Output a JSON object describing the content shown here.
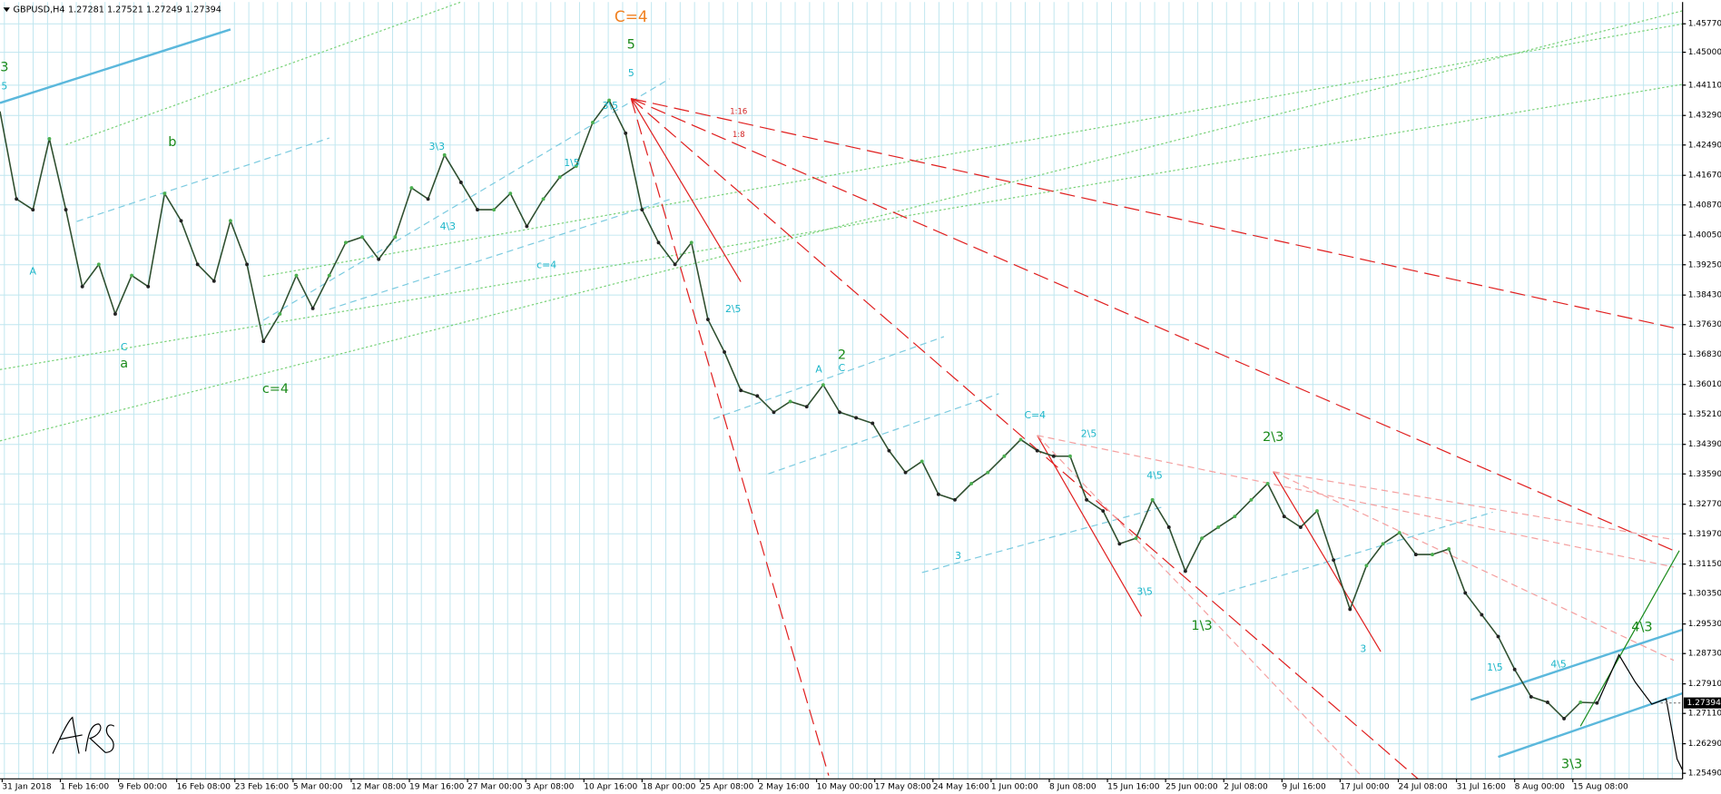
{
  "header": {
    "symbol": "GBPUSD,H4",
    "quote": "1.27281 1.27521 1.27249 1.27394"
  },
  "chart_data": {
    "type": "line",
    "color": "#2f4f2f",
    "grid": true,
    "x_labels": [
      "31 Jan 2018",
      "1 Feb 16:00",
      "9 Feb 00:00",
      "16 Feb 08:00",
      "23 Feb 16:00",
      "5 Mar 00:00",
      "12 Mar 08:00",
      "19 Mar 16:00",
      "27 Mar 00:00",
      "3 Apr 08:00",
      "10 Apr 16:00",
      "18 Apr 00:00",
      "25 Apr 08:00",
      "2 May 16:00",
      "10 May 00:00",
      "17 May 08:00",
      "24 May 16:00",
      "1 Jun 00:00",
      "8 Jun 08:00",
      "15 Jun 16:00",
      "25 Jun 00:00",
      "2 Jul 08:00",
      "9 Jul 16:00",
      "17 Jul 00:00",
      "24 Jul 08:00",
      "31 Jul 16:00",
      "8 Aug 00:00",
      "15 Aug 08:00"
    ],
    "values": [
      1.434,
      1.4103,
      1.4074,
      1.4266,
      1.4074,
      1.3866,
      1.3926,
      1.3792,
      1.3896,
      1.3866,
      1.4118,
      1.4044,
      1.3926,
      1.3881,
      1.4044,
      1.3926,
      1.3718,
      1.3792,
      1.3896,
      1.3807,
      1.3896,
      1.3985,
      1.4,
      1.394,
      1.4,
      1.4133,
      1.4103,
      1.4222,
      1.4148,
      1.4074,
      1.4074,
      1.4118,
      1.4029,
      1.4103,
      1.4162,
      1.4192,
      1.431,
      1.437,
      1.4281,
      1.4074,
      1.3985,
      1.3926,
      1.3985,
      1.3777,
      1.3689,
      1.3585,
      1.357,
      1.3526,
      1.3555,
      1.3541,
      1.36,
      1.3526,
      1.3511,
      1.3496,
      1.3422,
      1.3363,
      1.3393,
      1.3304,
      1.3289,
      1.3333,
      1.3363,
      1.3407,
      1.3452,
      1.3422,
      1.3407,
      1.3407,
      1.3289,
      1.3259,
      1.317,
      1.3185,
      1.3289,
      1.3215,
      1.3096,
      1.3185,
      1.3215,
      1.3244,
      1.3289,
      1.3333,
      1.3244,
      1.3215,
      1.3259,
      1.3126,
      1.2993,
      1.3111,
      1.317,
      1.32,
      1.3141,
      1.3141,
      1.3156,
      1.3037,
      1.2978,
      1.2919,
      1.283,
      1.2756,
      1.2741,
      1.2697,
      1.2741,
      1.27394
    ],
    "ylim": [
      1.2534,
      1.4636
    ],
    "yticks": [
      {
        "value": 1.4577,
        "label": "1.45770"
      },
      {
        "value": 1.45,
        "label": "1.45000"
      },
      {
        "value": 1.4411,
        "label": "1.44110"
      },
      {
        "value": 1.4329,
        "label": "1.43290"
      },
      {
        "value": 1.4249,
        "label": "1.42490"
      },
      {
        "value": 1.4167,
        "label": "1.41670"
      },
      {
        "value": 1.4087,
        "label": "1.40870"
      },
      {
        "value": 1.4005,
        "label": "1.40050"
      },
      {
        "value": 1.3925,
        "label": "1.39250"
      },
      {
        "value": 1.3843,
        "label": "1.38430"
      },
      {
        "value": 1.3763,
        "label": "1.37630"
      },
      {
        "value": 1.3683,
        "label": "1.36830"
      },
      {
        "value": 1.3601,
        "label": "1.36010"
      },
      {
        "value": 1.3521,
        "label": "1.35210"
      },
      {
        "value": 1.3439,
        "label": "1.34390"
      },
      {
        "value": 1.3359,
        "label": "1.33590"
      },
      {
        "value": 1.3277,
        "label": "1.32770"
      },
      {
        "value": 1.3197,
        "label": "1.31970"
      },
      {
        "value": 1.3115,
        "label": "1.31150"
      },
      {
        "value": 1.3035,
        "label": "1.30350"
      },
      {
        "value": 1.2953,
        "label": "1.29530"
      },
      {
        "value": 1.2873,
        "label": "1.28730"
      },
      {
        "value": 1.2791,
        "label": "1.27910"
      },
      {
        "value": 1.2711,
        "label": "1.27110"
      },
      {
        "value": 1.2629,
        "label": "1.26290"
      },
      {
        "value": 1.2549,
        "label": "1.25490"
      }
    ],
    "current_price": 1.27394,
    "annotations": [
      "C=4",
      "5",
      "5",
      "3\\5",
      "3",
      "5",
      "A",
      "C",
      "a",
      "b",
      "c=4",
      "2",
      "C",
      "1\\3",
      "3\\3",
      "4\\3",
      "2\\3",
      "C=4",
      "2\\5",
      "1:16",
      "1:8",
      "3\\3",
      "4\\3",
      "1\\5",
      "2\\5",
      "3\\5",
      "4\\5",
      "3",
      "3",
      "A",
      "c=4",
      "1\\5",
      "4\\5"
    ]
  }
}
